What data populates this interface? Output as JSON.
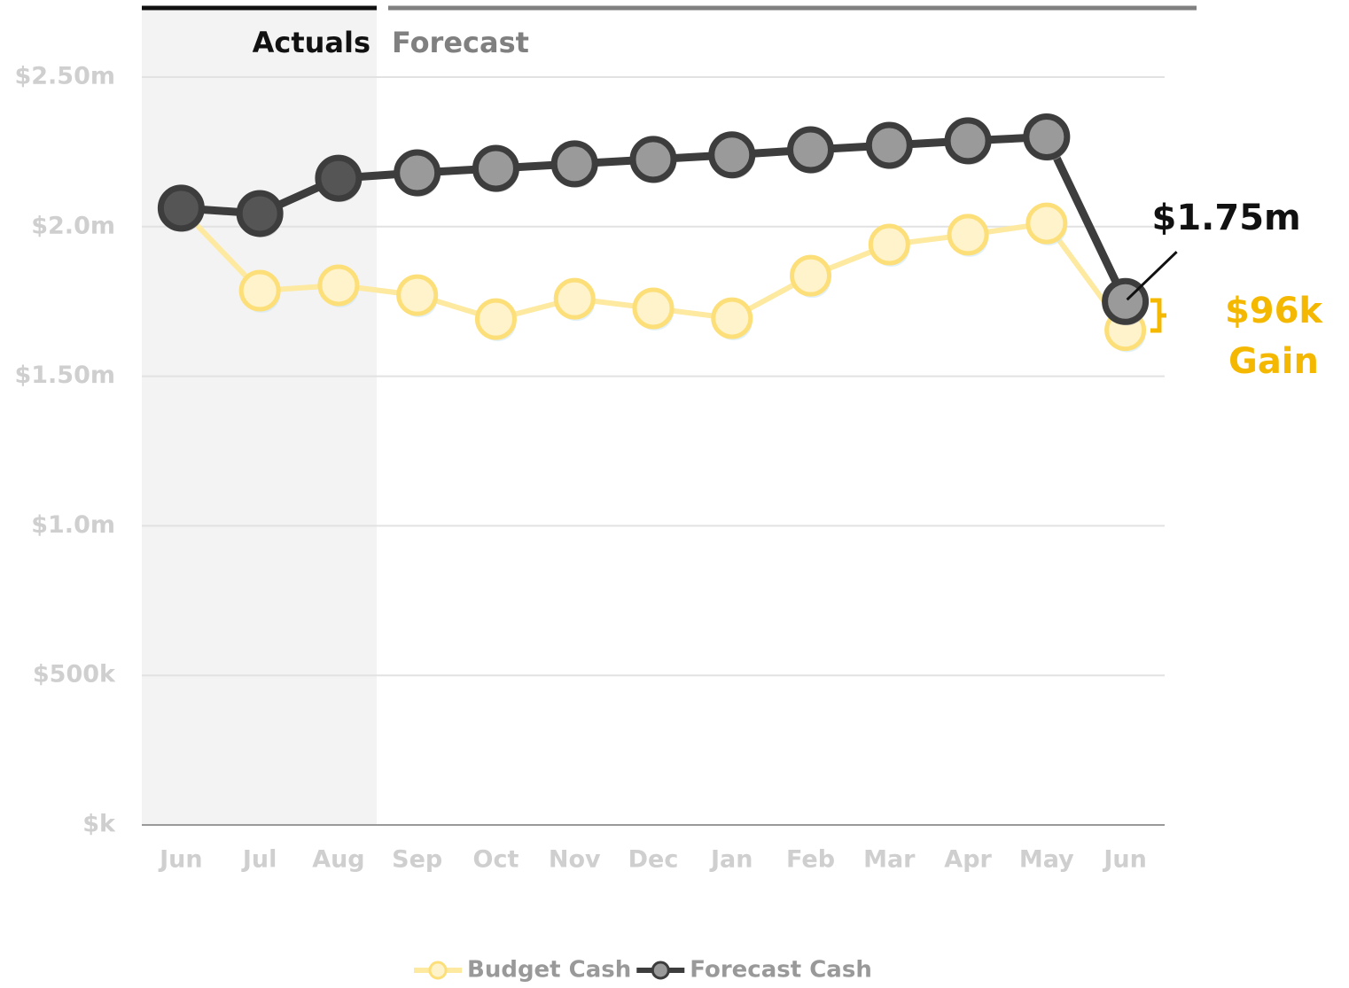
{
  "chart_data": {
    "type": "line",
    "categories": [
      "Jun",
      "Jul",
      "Aug",
      "Sep",
      "Oct",
      "Nov",
      "Dec",
      "Jan",
      "Feb",
      "Mar",
      "Apr",
      "May",
      "Jun"
    ],
    "series": [
      {
        "name": "Budget Cash",
        "color": "#fde9a0",
        "values": [
          2060000,
          1786000,
          1804000,
          1771000,
          1691000,
          1759000,
          1727000,
          1694000,
          1836000,
          1940000,
          1973000,
          2011000,
          1654000
        ]
      },
      {
        "name": "Forecast Cash",
        "color": "#3d3d3d",
        "values": [
          2062000,
          2044000,
          2162000,
          2180000,
          2195000,
          2210000,
          2225000,
          2240000,
          2257000,
          2272000,
          2287000,
          2300000,
          1750000
        ],
        "value_labels": [
          null,
          null,
          null,
          null,
          null,
          null,
          null,
          null,
          null,
          null,
          null,
          null,
          "$1.75m"
        ]
      }
    ],
    "ylim": [
      0,
      2500000
    ],
    "yticks": [
      {
        "value": 0,
        "label": "$k"
      },
      {
        "value": 500000,
        "label": "$500k"
      },
      {
        "value": 1000000,
        "label": "$1.0m"
      },
      {
        "value": 1500000,
        "label": "$1.50m"
      },
      {
        "value": 2000000,
        "label": "$2.0m"
      },
      {
        "value": 2500000,
        "label": "$2.50m"
      }
    ],
    "grid": true,
    "regions": [
      "Actuals",
      "Forecast"
    ],
    "annotations": [
      "$96k",
      "Gain"
    ],
    "legend": "bottom"
  }
}
